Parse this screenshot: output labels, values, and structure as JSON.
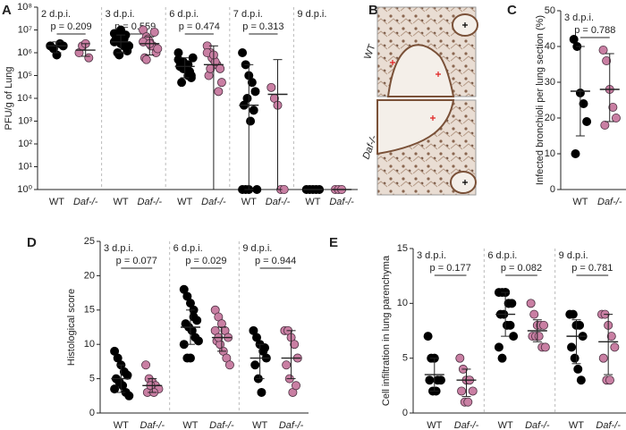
{
  "chart_data": [
    {
      "type": "dot",
      "panel": "A",
      "ylabel": "PFU/g of Lung",
      "log": true,
      "ylim": [
        1,
        100000000
      ],
      "yticks": [
        {
          "value": 1,
          "label": "10⁰"
        },
        {
          "value": 10,
          "label": "10¹"
        },
        {
          "value": 100,
          "label": "10²"
        },
        {
          "value": 1000,
          "label": "10³"
        },
        {
          "value": 10000,
          "label": "10⁴"
        },
        {
          "value": 100000,
          "label": "10⁵"
        },
        {
          "value": 1000000,
          "label": "10⁶"
        },
        {
          "value": 10000000,
          "label": "10⁷"
        },
        {
          "value": 100000000,
          "label": "10⁸"
        }
      ],
      "groups": [
        "2 d.p.i.",
        "3 d.p.i.",
        "6 d.p.i.",
        "7 d.p.i.",
        "9 d.p.i."
      ],
      "pvalues": [
        "p = 0.209",
        "p = 0.559",
        "p = 0.474",
        "p = 0.313",
        null
      ],
      "series": [
        {
          "name": "WT",
          "color": "#000000",
          "values": [
            [
              2000000,
              1500000,
              800000,
              2500000,
              2000000
            ],
            [
              3000000,
              5000000,
              10000000,
              2000000,
              1500000,
              4000000,
              800000,
              3000000,
              6000000,
              2000000,
              7000000,
              1000000,
              2500000,
              4000000,
              1200000
            ],
            [
              500000,
              300000,
              200000,
              100000,
              80000,
              400000,
              200000,
              300000,
              150000,
              600000,
              1000000,
              50000,
              200000,
              300000,
              100000,
              250000,
              400000
            ],
            [
              1000000,
              300000,
              100000,
              50000,
              20000,
              5000,
              10000,
              1000,
              3000,
              1,
              1,
              1,
              1
            ],
            [
              1,
              1,
              1,
              1,
              1
            ]
          ],
          "center": [
            2000000,
            3000000,
            250000,
            5000,
            1
          ],
          "low": [
            1000000,
            1000000,
            80000,
            1,
            1
          ],
          "high": [
            3000000,
            6000000,
            600000,
            300000,
            1
          ]
        },
        {
          "name": "Daf-/-",
          "color": "#c97fa3",
          "values": [
            [
              1000000,
              2000000,
              2500000,
              600000
            ],
            [
              10000000,
              5000000,
              3000000,
              2000000,
              1000000,
              600000,
              4000000,
              2000000,
              8000000,
              1500000,
              3000000,
              500000,
              2500000
            ],
            [
              2000000,
              1000000,
              500000,
              300000,
              200000,
              100000,
              600000,
              400000,
              20000,
              50000,
              1000000,
              200000,
              800000
            ],
            [
              30000,
              10000,
              5000,
              1,
              1
            ],
            [
              1,
              1,
              1
            ]
          ],
          "center": [
            1300000,
            2500000,
            300000,
            15000,
            1
          ],
          "low": [
            700000,
            800000,
            1,
            1,
            1
          ],
          "high": [
            2500000,
            5000000,
            2000000,
            500000,
            1
          ]
        }
      ]
    },
    {
      "type": "image",
      "panel": "B",
      "labels": [
        "WT",
        "Daf-/-"
      ]
    },
    {
      "type": "dot",
      "panel": "C",
      "ylabel": "Infected bronchioli per lung section (%)",
      "log": false,
      "ylim": [
        0,
        50
      ],
      "yticks": [
        0,
        10,
        20,
        30,
        40,
        50
      ],
      "groups": [
        "3 d.p.i."
      ],
      "pvalues": [
        "p = 0.788"
      ],
      "series": [
        {
          "name": "WT",
          "color": "#000000",
          "values": [
            [
              42,
              40,
              27,
              24,
              19,
              10
            ]
          ],
          "center": [
            27.5
          ],
          "low": [
            15
          ],
          "high": [
            40
          ]
        },
        {
          "name": "Daf-/-",
          "color": "#c97fa3",
          "values": [
            [
              39,
              36,
              28,
              23,
              20,
              18
            ]
          ],
          "center": [
            28
          ],
          "low": [
            19
          ],
          "high": [
            38
          ]
        }
      ]
    },
    {
      "type": "dot",
      "panel": "D",
      "ylabel": "Histological score",
      "log": false,
      "ylim": [
        0,
        25
      ],
      "yticks": [
        0,
        5,
        10,
        15,
        20,
        25
      ],
      "groups": [
        "3 d.p.i.",
        "6 d.p.i.",
        "9 d.p.i."
      ],
      "pvalues": [
        "p = 0.077",
        "p = 0.029",
        "p = 0.944"
      ],
      "series": [
        {
          "name": "WT",
          "color": "#000000",
          "values": [
            [
              9,
              8,
              7,
              6,
              5.5,
              5,
              4.5,
              4,
              3,
              2.5,
              3.5
            ],
            [
              18,
              17,
              16,
              15,
              13.5,
              13,
              12.5,
              12,
              11,
              10.5,
              10,
              8,
              8,
              14
            ],
            [
              12,
              11,
              10,
              9,
              8,
              7,
              5,
              3,
              9.5
            ]
          ],
          "center": [
            5,
            12.5,
            8
          ],
          "low": [
            3,
            10,
            5
          ],
          "high": [
            7,
            15,
            10
          ]
        },
        {
          "name": "Daf-/-",
          "color": "#c97fa3",
          "values": [
            [
              7,
              5,
              4.5,
              4,
              3.5,
              3,
              4,
              3
            ],
            [
              15,
              14,
              13,
              12,
              11,
              10.5,
              10,
              9,
              8,
              7,
              12,
              11
            ],
            [
              12,
              12,
              11,
              10,
              8,
              7,
              5,
              3,
              4
            ]
          ],
          "center": [
            4,
            11,
            8
          ],
          "low": [
            3,
            9,
            5
          ],
          "high": [
            5,
            12.5,
            12
          ]
        }
      ]
    },
    {
      "type": "dot",
      "panel": "E",
      "ylabel": "Cell infiltration in lung parenchyma",
      "log": false,
      "ylim": [
        0,
        15
      ],
      "yticks": [
        0,
        5,
        10,
        15
      ],
      "groups": [
        "3 d.p.i.",
        "6 d.p.i.",
        "9 d.p.i."
      ],
      "pvalues": [
        "p = 0.177",
        "p = 0.082",
        "p = 0.781"
      ],
      "series": [
        {
          "name": "WT",
          "color": "#000000",
          "values": [
            [
              7,
              5,
              5,
              3,
              3,
              3,
              2,
              2
            ],
            [
              11,
              11,
              11,
              10,
              10,
              9,
              9,
              8,
              8,
              7,
              6,
              5,
              11,
              10
            ],
            [
              9,
              9,
              8,
              8,
              7,
              6,
              5,
              4,
              3
            ]
          ],
          "center": [
            3.5,
            9,
            7
          ],
          "low": [
            2,
            7,
            4.5
          ],
          "high": [
            5,
            11,
            8.5
          ]
        },
        {
          "name": "Daf-/-",
          "color": "#c97fa3",
          "values": [
            [
              5,
              4,
              3,
              3,
              2,
              2,
              1,
              1
            ],
            [
              10,
              9,
              8,
              8,
              8,
              7,
              7,
              7,
              6,
              6
            ],
            [
              9,
              9,
              8,
              7,
              6,
              5,
              3,
              3
            ]
          ],
          "center": [
            3,
            7.5,
            6.5
          ],
          "low": [
            1.5,
            6.5,
            3.5
          ],
          "high": [
            4,
            8.5,
            9
          ]
        }
      ]
    }
  ]
}
